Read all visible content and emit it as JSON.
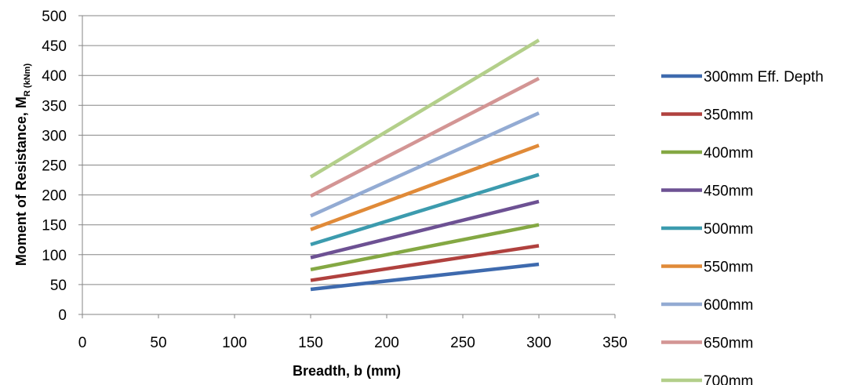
{
  "chart_data": {
    "type": "line",
    "xlabel": "Breadth, b (mm)",
    "ylabel": "Moment of Resistance, M",
    "ylabel_subscript": "R (kNm)",
    "xlim": [
      0,
      350
    ],
    "ylim": [
      0,
      500
    ],
    "xticks": [
      "0",
      "50",
      "100",
      "150",
      "200",
      "250",
      "300",
      "350"
    ],
    "yticks": [
      "0",
      "50",
      "100",
      "150",
      "200",
      "250",
      "300",
      "350",
      "400",
      "450",
      "500"
    ],
    "grid": "horizontal",
    "legend_position": "right",
    "x": [
      150,
      300
    ],
    "series": [
      {
        "name": "300mm Eff. Depth",
        "color": "#3E6AAE",
        "values": [
          42,
          84
        ]
      },
      {
        "name": "350mm",
        "color": "#B0413E",
        "values": [
          57,
          115
        ]
      },
      {
        "name": "400mm",
        "color": "#84A843",
        "values": [
          75,
          150
        ]
      },
      {
        "name": "450mm",
        "color": "#6D5193",
        "values": [
          95,
          189
        ]
      },
      {
        "name": "500mm",
        "color": "#3C9BAE",
        "values": [
          117,
          234
        ]
      },
      {
        "name": "550mm",
        "color": "#E08A38",
        "values": [
          142,
          283
        ]
      },
      {
        "name": "600mm",
        "color": "#93ABD3",
        "values": [
          165,
          337
        ]
      },
      {
        "name": "650mm",
        "color": "#D39594",
        "values": [
          198,
          395
        ]
      },
      {
        "name": "700mm",
        "color": "#B3CF8A",
        "values": [
          230,
          459
        ]
      }
    ]
  }
}
